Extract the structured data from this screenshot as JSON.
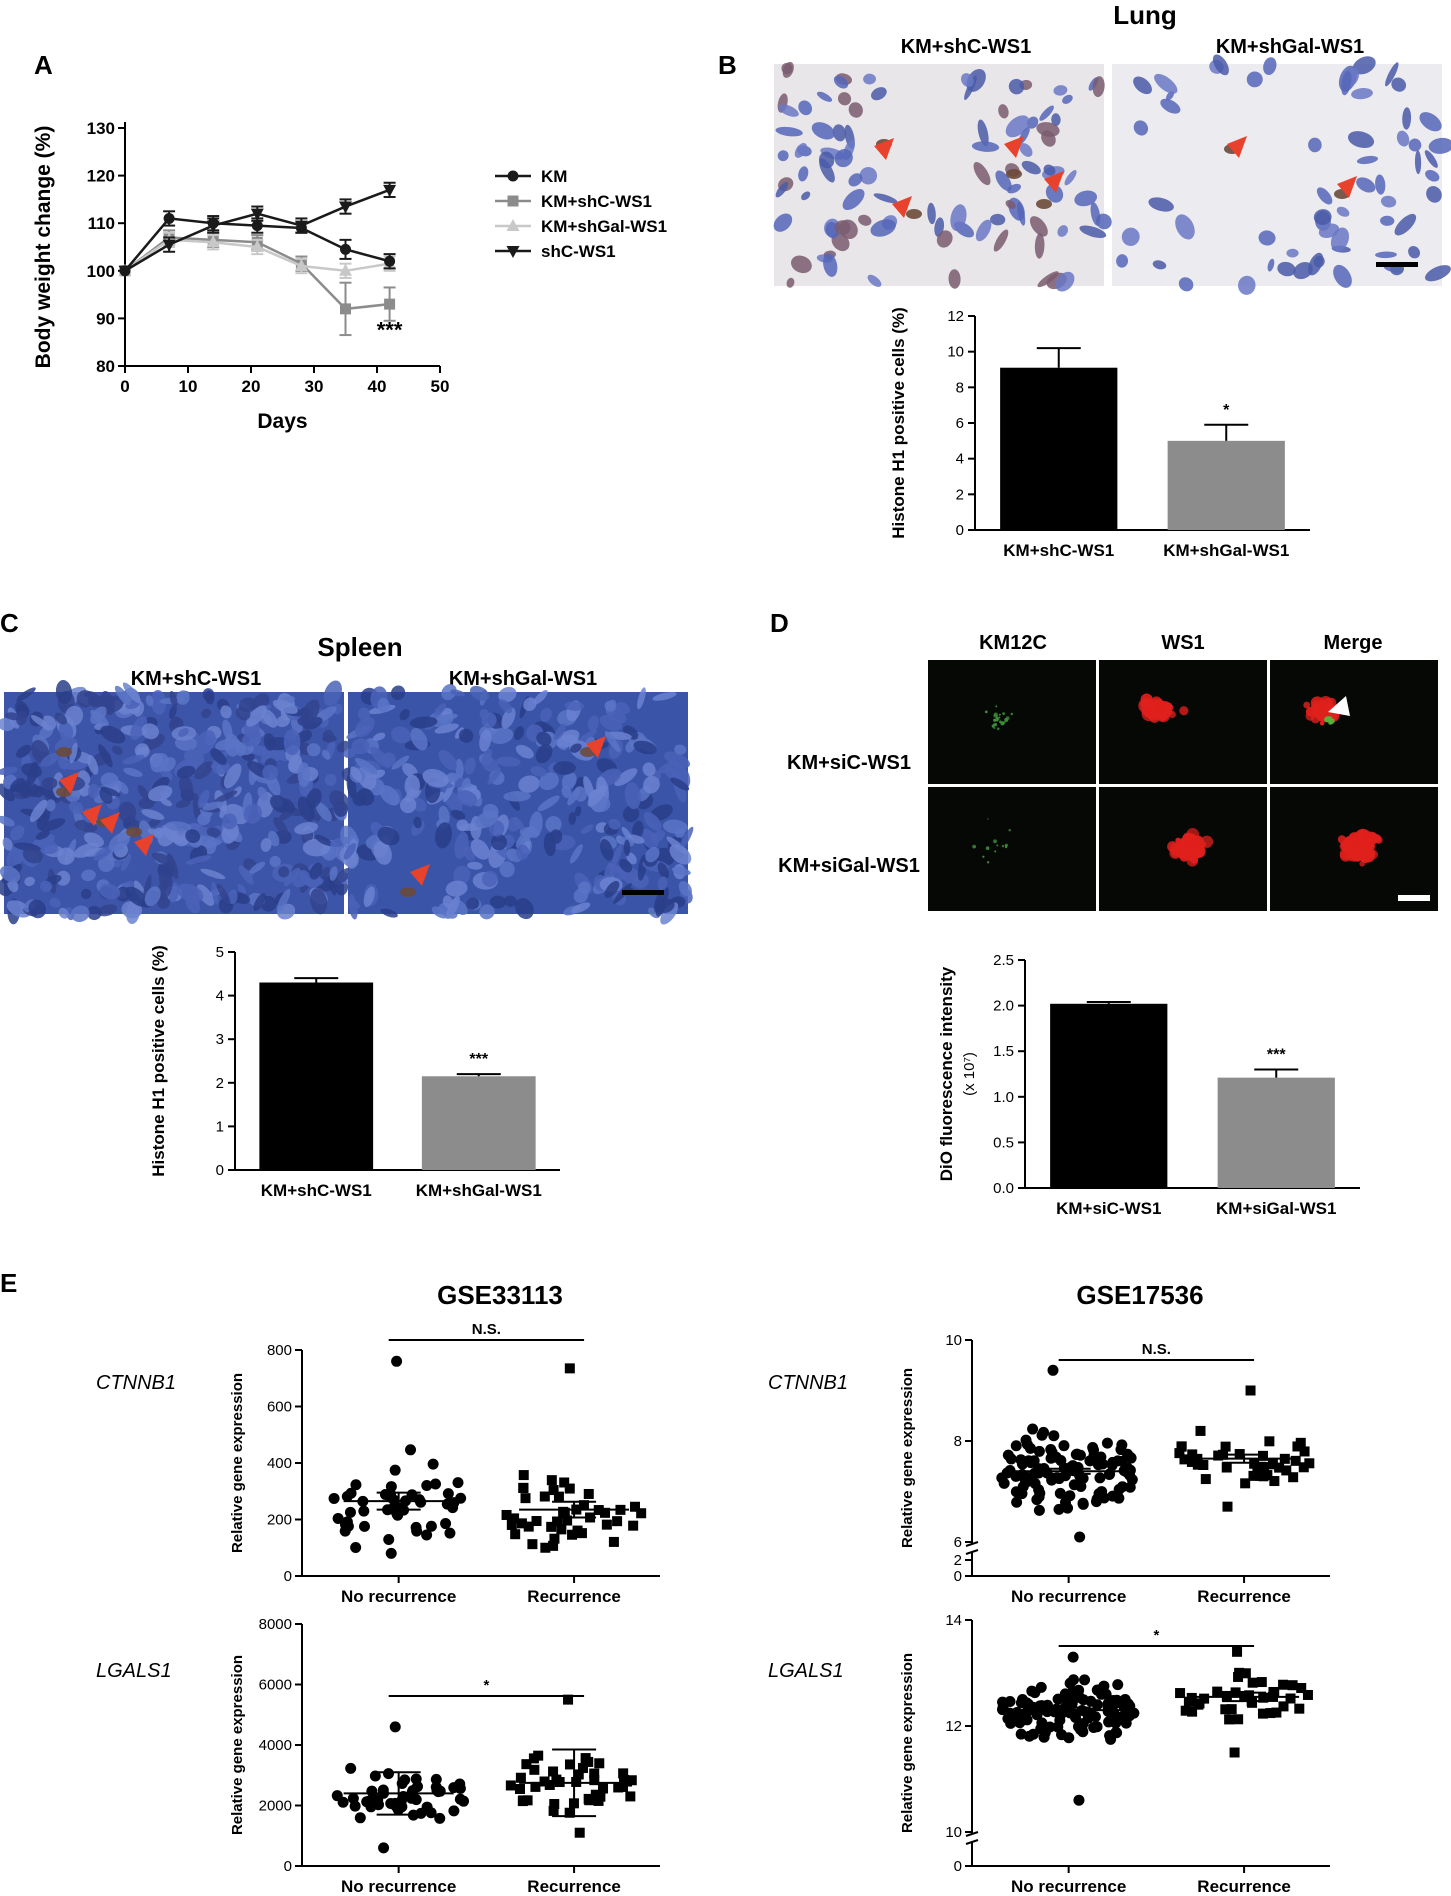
{
  "panels": {
    "a": {
      "letter": "A"
    },
    "b": {
      "letter": "B",
      "title": "Lung",
      "images": [
        "KM+shC-WS1",
        "KM+shGal-WS1"
      ]
    },
    "c": {
      "letter": "C",
      "title": "Spleen",
      "images": [
        "KM+shC-WS1",
        "KM+shGal-WS1"
      ]
    },
    "d": {
      "letter": "D",
      "columns": [
        "KM12C",
        "WS1",
        "Merge"
      ],
      "rows": [
        "KM+siC-WS1",
        "KM+siGal-WS1"
      ]
    },
    "e": {
      "letter": "E",
      "datasets": [
        "GSE33113",
        "GSE17536"
      ],
      "genes": [
        "CTNNB1",
        "LGALS1"
      ]
    }
  },
  "chart_data": [
    {
      "id": "A",
      "type": "line",
      "xlabel": "Days",
      "ylabel": "Body weight change (%)",
      "xlim": [
        0,
        50
      ],
      "ylim": [
        80,
        130
      ],
      "xticks": [
        0,
        10,
        20,
        30,
        40,
        50
      ],
      "yticks": [
        80,
        90,
        100,
        110,
        120,
        130
      ],
      "x": [
        0,
        7,
        14,
        21,
        28,
        35,
        42
      ],
      "series": [
        {
          "name": "KM",
          "marker": "circle",
          "color": "#1a1a1a",
          "values": [
            100,
            111,
            110,
            109.5,
            109,
            104.5,
            102
          ],
          "err": [
            0,
            1.5,
            1.5,
            1.5,
            1,
            2,
            1.5
          ]
        },
        {
          "name": "KM+shC-WS1",
          "marker": "square",
          "color": "#8c8c8c",
          "values": [
            100,
            107,
            106.5,
            106,
            101.5,
            92,
            93
          ],
          "err": [
            0,
            1.5,
            1.5,
            1.5,
            1.5,
            5.5,
            3.5
          ]
        },
        {
          "name": "KM+shGal-WS1",
          "marker": "triangle",
          "color": "#c8c8c8",
          "values": [
            100,
            106.5,
            106,
            105,
            101,
            100,
            101.5
          ],
          "err": [
            0,
            1.5,
            1.5,
            1.5,
            1.5,
            1.5,
            1.5
          ]
        },
        {
          "name": "shC-WS1",
          "marker": "triangle-down",
          "color": "#1a1a1a",
          "values": [
            100,
            105.5,
            109.5,
            112,
            109.5,
            113.5,
            117
          ],
          "err": [
            0,
            1.5,
            1.5,
            1.5,
            1.5,
            1.5,
            1.5
          ]
        }
      ],
      "annotations": [
        "***"
      ]
    },
    {
      "id": "B",
      "type": "bar",
      "categories": [
        "KM+shC-WS1",
        "KM+shGal-WS1"
      ],
      "values": [
        9.1,
        5.0
      ],
      "err": [
        1.1,
        0.9
      ],
      "colors": [
        "#000000",
        "#8c8c8c"
      ],
      "sig": [
        "",
        "*"
      ],
      "ylabel": "Histone H1 positive cells (%)",
      "ylim": [
        0,
        12
      ],
      "yticks": [
        0,
        2,
        4,
        6,
        8,
        10,
        12
      ]
    },
    {
      "id": "C",
      "type": "bar",
      "categories": [
        "KM+shC-WS1",
        "KM+shGal-WS1"
      ],
      "values": [
        4.3,
        2.15
      ],
      "err": [
        0.1,
        0.05
      ],
      "colors": [
        "#000000",
        "#8c8c8c"
      ],
      "sig": [
        "",
        "***"
      ],
      "ylabel": "Histone H1 positive cells (%)",
      "ylim": [
        0,
        5
      ],
      "yticks": [
        0,
        1,
        2,
        3,
        4,
        5
      ]
    },
    {
      "id": "D",
      "type": "bar",
      "categories": [
        "KM+siC-WS1",
        "KM+siGal-WS1"
      ],
      "values": [
        2.02,
        1.21
      ],
      "err": [
        0.02,
        0.09
      ],
      "colors": [
        "#000000",
        "#8c8c8c"
      ],
      "sig": [
        "",
        "***"
      ],
      "ylabel": "DiO fluorescence intensity",
      "ylabel2": "(x 10⁷)",
      "ylim": [
        0,
        2.5
      ],
      "yticks": [
        "0.0",
        "0.5",
        "1.0",
        "1.5",
        "2.0",
        "2.5"
      ]
    },
    {
      "id": "E1",
      "type": "scatter",
      "dataset": "GSE33113",
      "gene": "CTNNB1",
      "categories": [
        "No recurrence",
        "Recurrence"
      ],
      "ylabel": "Relative gene expression",
      "ylim": [
        0,
        800
      ],
      "yticks": [
        0,
        200,
        400,
        600,
        800
      ],
      "means": [
        265,
        235
      ],
      "sem": [
        30,
        28
      ],
      "sig": "N.S.",
      "n": [
        50,
        44
      ],
      "ranges": [
        [
          80,
          760
        ],
        [
          100,
          735
        ]
      ]
    },
    {
      "id": "E2",
      "type": "scatter",
      "dataset": "GSE17536",
      "gene": "CTNNB1",
      "categories": [
        "No recurrence",
        "Recurrence"
      ],
      "ylabel": "Relative gene expression",
      "ylim": [
        6,
        10
      ],
      "yticks": [
        0,
        2,
        6,
        8,
        10
      ],
      "axis_break": true,
      "means": [
        7.4,
        7.65
      ],
      "sem": [
        0.05,
        0.08
      ],
      "sig": "N.S.",
      "n": [
        110,
        40
      ],
      "ranges": [
        [
          6.1,
          9.4
        ],
        [
          6.7,
          9.0
        ]
      ]
    },
    {
      "id": "E3",
      "type": "scatter",
      "dataset": "GSE33113",
      "gene": "LGALS1",
      "categories": [
        "No recurrence",
        "Recurrence"
      ],
      "ylabel": "Relative gene expression",
      "ylim": [
        0,
        8000
      ],
      "yticks": [
        0,
        2000,
        4000,
        6000,
        8000
      ],
      "means": [
        2400,
        2750
      ],
      "sem": [
        700,
        1100
      ],
      "sig": "*",
      "n": [
        50,
        44
      ],
      "ranges": [
        [
          600,
          4600
        ],
        [
          1100,
          5500
        ]
      ]
    },
    {
      "id": "E4",
      "type": "scatter",
      "dataset": "GSE17536",
      "gene": "LGALS1",
      "categories": [
        "No recurrence",
        "Recurrence"
      ],
      "ylabel": "Relative gene expression",
      "ylim": [
        10,
        14
      ],
      "yticks": [
        0,
        10,
        12,
        14
      ],
      "axis_break": true,
      "means": [
        12.3,
        12.55
      ],
      "sem": [
        0.05,
        0.08
      ],
      "sig": "*",
      "n": [
        120,
        40
      ],
      "ranges": [
        [
          10.6,
          13.3
        ],
        [
          11.5,
          13.4
        ]
      ]
    }
  ]
}
